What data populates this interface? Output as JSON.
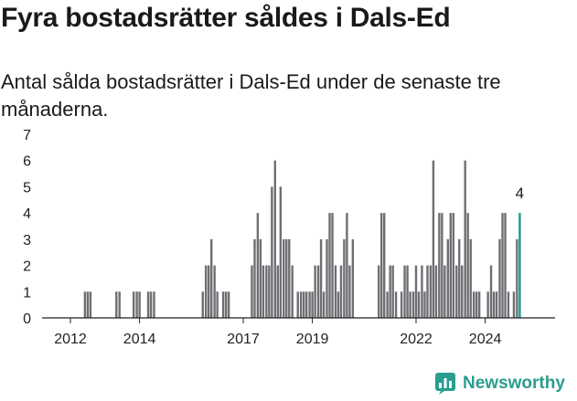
{
  "header": {
    "title": "Fyra bostadsrätter såldes i Dals-Ed",
    "subtitle": "Antal sålda bostadsrätter i Dals-Ed under de senaste tre månaderna."
  },
  "brand": {
    "name": "Newsworthy",
    "color": "#2a9d8f"
  },
  "colors": {
    "bar": "#6f6e73",
    "highlight": "#1a9a8c",
    "axis": "#222222"
  },
  "chart_data": {
    "type": "bar",
    "title": "Fyra bostadsrätter såldes i Dals-Ed",
    "subtitle": "Antal sålda bostadsrätter i Dals-Ed under de senaste tre månaderna.",
    "xlabel": "",
    "ylabel": "",
    "ylim": [
      0,
      7
    ],
    "yticks": [
      0,
      1,
      2,
      3,
      4,
      5,
      6,
      7
    ],
    "xticks": [
      "2012",
      "2014",
      "2017",
      "2019",
      "2022",
      "2024"
    ],
    "grid": false,
    "legend": "none",
    "highlight_label": "4",
    "series": [
      {
        "values": [
          [
            2012.42,
            1
          ],
          [
            2012.5,
            1
          ],
          [
            2012.58,
            1
          ],
          [
            2013.33,
            1
          ],
          [
            2013.42,
            1
          ],
          [
            2013.83,
            1
          ],
          [
            2013.92,
            1
          ],
          [
            2014.0,
            1
          ],
          [
            2014.25,
            1
          ],
          [
            2014.33,
            1
          ],
          [
            2014.42,
            1
          ],
          [
            2015.83,
            1
          ],
          [
            2015.92,
            2
          ],
          [
            2016.0,
            2
          ],
          [
            2016.08,
            3
          ],
          [
            2016.17,
            2
          ],
          [
            2016.25,
            1
          ],
          [
            2016.42,
            1
          ],
          [
            2016.5,
            1
          ],
          [
            2016.58,
            1
          ],
          [
            2017.25,
            2
          ],
          [
            2017.33,
            3
          ],
          [
            2017.42,
            4
          ],
          [
            2017.5,
            3
          ],
          [
            2017.58,
            2
          ],
          [
            2017.67,
            2
          ],
          [
            2017.75,
            2
          ],
          [
            2017.83,
            5
          ],
          [
            2017.92,
            6
          ],
          [
            2018.0,
            2
          ],
          [
            2018.08,
            5
          ],
          [
            2018.17,
            3
          ],
          [
            2018.25,
            3
          ],
          [
            2018.33,
            3
          ],
          [
            2018.42,
            2
          ],
          [
            2018.58,
            1
          ],
          [
            2018.67,
            1
          ],
          [
            2018.75,
            1
          ],
          [
            2018.83,
            1
          ],
          [
            2018.92,
            1
          ],
          [
            2019.0,
            1
          ],
          [
            2019.08,
            2
          ],
          [
            2019.17,
            2
          ],
          [
            2019.25,
            3
          ],
          [
            2019.33,
            1
          ],
          [
            2019.42,
            3
          ],
          [
            2019.5,
            4
          ],
          [
            2019.58,
            4
          ],
          [
            2019.67,
            2
          ],
          [
            2019.75,
            1
          ],
          [
            2019.83,
            2
          ],
          [
            2019.92,
            3
          ],
          [
            2020.0,
            4
          ],
          [
            2020.08,
            2
          ],
          [
            2020.17,
            3
          ],
          [
            2020.92,
            2
          ],
          [
            2021.0,
            4
          ],
          [
            2021.08,
            4
          ],
          [
            2021.17,
            1
          ],
          [
            2021.25,
            2
          ],
          [
            2021.33,
            2
          ],
          [
            2021.42,
            1
          ],
          [
            2021.58,
            1
          ],
          [
            2021.67,
            2
          ],
          [
            2021.75,
            2
          ],
          [
            2021.83,
            1
          ],
          [
            2021.92,
            1
          ],
          [
            2022.0,
            2
          ],
          [
            2022.08,
            1
          ],
          [
            2022.17,
            2
          ],
          [
            2022.25,
            1
          ],
          [
            2022.33,
            2
          ],
          [
            2022.42,
            2
          ],
          [
            2022.5,
            6
          ],
          [
            2022.58,
            2
          ],
          [
            2022.67,
            4
          ],
          [
            2022.75,
            4
          ],
          [
            2022.83,
            2
          ],
          [
            2022.92,
            3
          ],
          [
            2023.0,
            4
          ],
          [
            2023.08,
            4
          ],
          [
            2023.17,
            2
          ],
          [
            2023.25,
            3
          ],
          [
            2023.33,
            2
          ],
          [
            2023.42,
            6
          ],
          [
            2023.5,
            4
          ],
          [
            2023.58,
            3
          ],
          [
            2023.67,
            1
          ],
          [
            2023.75,
            1
          ],
          [
            2023.83,
            1
          ],
          [
            2024.08,
            1
          ],
          [
            2024.17,
            2
          ],
          [
            2024.25,
            1
          ],
          [
            2024.33,
            1
          ],
          [
            2024.42,
            3
          ],
          [
            2024.5,
            4
          ],
          [
            2024.58,
            4
          ],
          [
            2024.67,
            1
          ],
          [
            2024.83,
            1
          ],
          [
            2024.92,
            3
          ],
          [
            2025.0,
            4
          ]
        ]
      }
    ]
  }
}
